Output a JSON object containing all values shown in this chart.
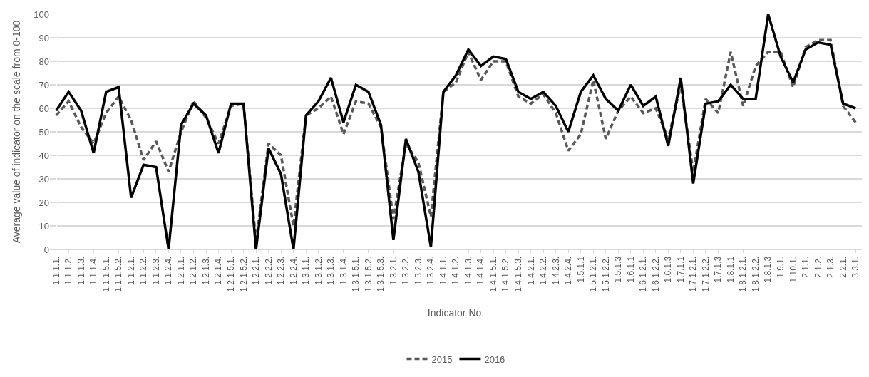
{
  "chart_data": {
    "type": "line",
    "xlabel": "Indicator No.",
    "ylabel": "Average value of indicator on the scale from 0-100",
    "categories": [
      "1.1.1.1.",
      "1.1.1.2.",
      "1.1.1.3.",
      "1.1.1.4.",
      "1.1.1.5.1.",
      "1.1.1.5.2.",
      "1.1.2.1.",
      "1.1.2.2.",
      "1.1.2.3.",
      "1.1.2.4.",
      "1.2.1.1.",
      "1.2.1.2.",
      "1.2.1.3.",
      "1.2.1.4.",
      "1.2.1.5.1.",
      "1.2.1.5.2.",
      "1.2.2.1.",
      "1.2.2.2.",
      "1.2.2.3.",
      "1.2.2.4.",
      "1.3.1.1.",
      "1.3.1.2.",
      "1.3.1.3.",
      "1.3.1.4.",
      "1.3.1.5.1.",
      "1.3.1.5.2.",
      "1.3.1.5.3.",
      "1.3.2.1.",
      "1.3.2.2.",
      "1.3.2.3.",
      "1.3.2.4.",
      "1.4.1.1.",
      "1.4.1.2.",
      "1.4.1.3.",
      "1.4.1.4.",
      "1.4.1.5.1.",
      "1.4.1.5.2.",
      "1.4.1.5.3.",
      "1.4.2.1.",
      "1.4.2.2.",
      "1.4.2.3.",
      "1.4.2.4.",
      "1.5.1.1",
      "1.5.1.2.1.",
      "1.5.1.2.2.",
      "1.5.1.3",
      "1.6.1.1",
      "1.6.1.2.1.",
      "1.6.1.2.2.",
      "1.6.1.3",
      "1.7.1.1",
      "1.7.1.2.1.",
      "1.7.1.2.2.",
      "1.7.1.3",
      "1.8.1.1",
      "1.8.1.2.1.",
      "1.8.1.2.2.",
      "1.8.1.3",
      "1.9.1.",
      "1.10.1.",
      "2.1.1.",
      "2.1.2.",
      "2.1.3.",
      "2.2.1.",
      "3.3.1."
    ],
    "series": [
      {
        "name": "2015",
        "color": "#595959",
        "line_style": "dashed",
        "values": [
          57,
          63,
          52,
          45,
          58,
          65,
          55,
          38,
          46,
          33,
          50,
          63,
          56,
          45,
          61,
          62,
          3,
          45,
          40,
          10,
          57,
          60,
          65,
          49,
          63,
          62,
          52,
          13,
          45,
          37,
          14,
          67,
          71,
          84,
          72,
          80,
          80,
          65,
          62,
          66,
          58,
          42,
          49,
          72,
          47,
          59,
          65,
          58,
          60,
          47,
          70,
          33,
          64,
          58,
          84,
          61,
          78,
          84,
          84,
          69,
          86,
          89,
          89,
          61,
          54
        ]
      },
      {
        "name": "2016",
        "color": "#000000",
        "line_style": "solid",
        "values": [
          59,
          67,
          59,
          41,
          67,
          69,
          22,
          36,
          35,
          0,
          53,
          62,
          57,
          41,
          62,
          62,
          0,
          43,
          32,
          0,
          57,
          63,
          73,
          54,
          70,
          67,
          53,
          4,
          47,
          33,
          1,
          67,
          74,
          85,
          78,
          82,
          81,
          67,
          64,
          67,
          61,
          50,
          67,
          74,
          64,
          59,
          70,
          61,
          65,
          44,
          73,
          28,
          62,
          63,
          70,
          64,
          64,
          100,
          82,
          71,
          85,
          88,
          87,
          62,
          60
        ]
      }
    ],
    "ylim": [
      0,
      100
    ],
    "yticks": [
      0,
      10,
      20,
      30,
      40,
      50,
      60,
      70,
      80,
      90,
      100
    ],
    "grid": "y",
    "legend": "bottom",
    "marker": "none"
  }
}
